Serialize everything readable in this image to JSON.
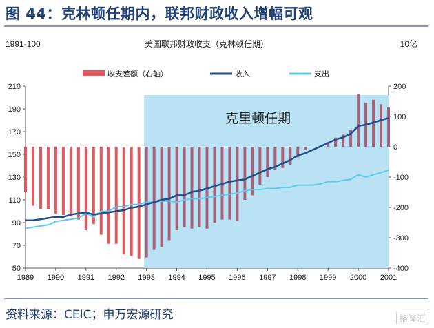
{
  "figure_title": "图 44：克林顿任期内，联邦财政收入增幅可观",
  "source_text": "资料来源：CEIC；申万宏源研究",
  "watermark_text": "格隆汇",
  "chart_data": {
    "type": "bar+line",
    "title": "美国联邦财政收支（克林顿任期）",
    "left_unit": "1991-100",
    "right_unit": "10亿",
    "shaded_label": "克里顿任期",
    "shaded_range": [
      1992.92,
      2001.0
    ],
    "x_range": [
      1989.0,
      2001.0
    ],
    "x_ticks": [
      "1989",
      "1990",
      "1991",
      "1992",
      "1993",
      "1994",
      "1995",
      "1996",
      "1997",
      "1998",
      "1999",
      "2000",
      "2001"
    ],
    "y_left_range": [
      50,
      210
    ],
    "y_left_ticks": [
      "50",
      "70",
      "90",
      "110",
      "130",
      "150",
      "170",
      "190",
      "210"
    ],
    "y_right_range": [
      -400,
      200
    ],
    "y_right_ticks": [
      "-400",
      "-300",
      "-200",
      "-100",
      "0",
      "100",
      "200"
    ],
    "legend": [
      {
        "name": "收支差额（右轴）",
        "color": "#e15a5f",
        "kind": "bar"
      },
      {
        "name": "收入",
        "color": "#1f4e8c",
        "kind": "line"
      },
      {
        "name": "支出",
        "color": "#5ec8ec",
        "kind": "line"
      }
    ],
    "balance": {
      "x": [
        1989.0,
        1989.25,
        1989.5,
        1989.75,
        1990.0,
        1990.25,
        1990.5,
        1990.75,
        1991.0,
        1991.25,
        1991.5,
        1991.75,
        1992.0,
        1992.25,
        1992.5,
        1992.75,
        1993.0,
        1993.25,
        1993.5,
        1993.75,
        1994.0,
        1994.25,
        1994.5,
        1994.75,
        1995.0,
        1995.25,
        1995.5,
        1995.75,
        1996.0,
        1996.25,
        1996.5,
        1996.75,
        1997.0,
        1997.25,
        1997.5,
        1997.75,
        1998.0,
        1998.25,
        1998.5,
        1998.75,
        1999.0,
        1999.25,
        1999.5,
        1999.75,
        2000.0,
        2000.25,
        2000.5,
        2000.75,
        2001.0
      ],
      "values": [
        -150,
        -195,
        -205,
        -205,
        -220,
        -225,
        -230,
        -240,
        -275,
        -255,
        -290,
        -320,
        -320,
        -355,
        -360,
        -370,
        -365,
        -340,
        -330,
        -310,
        -275,
        -265,
        -270,
        -265,
        -270,
        -250,
        -240,
        -240,
        -245,
        -175,
        -160,
        -125,
        -100,
        -75,
        -70,
        -60,
        -35,
        -10,
        0,
        0,
        15,
        30,
        40,
        55,
        175,
        145,
        155,
        140,
        130
      ]
    },
    "revenue": {
      "x": [
        1989.0,
        1989.25,
        1989.5,
        1989.75,
        1990.0,
        1990.25,
        1990.5,
        1990.75,
        1991.0,
        1991.25,
        1991.5,
        1991.75,
        1992.0,
        1992.25,
        1992.5,
        1992.75,
        1993.0,
        1993.25,
        1993.5,
        1993.75,
        1994.0,
        1994.25,
        1994.5,
        1994.75,
        1995.0,
        1995.25,
        1995.5,
        1995.75,
        1996.0,
        1996.25,
        1996.5,
        1996.75,
        1997.0,
        1997.25,
        1997.5,
        1997.75,
        1998.0,
        1998.25,
        1998.5,
        1998.75,
        1999.0,
        1999.25,
        1999.5,
        1999.75,
        2000.0,
        2000.25,
        2000.5,
        2000.75,
        2001.0
      ],
      "values": [
        92,
        92,
        93,
        94,
        95,
        95,
        97,
        98,
        99,
        97,
        98,
        99,
        100,
        101,
        103,
        104,
        106,
        108,
        110,
        111,
        114,
        114,
        117,
        118,
        120,
        122,
        124,
        126,
        127,
        128,
        131,
        134,
        137,
        139,
        142,
        145,
        149,
        151,
        154,
        157,
        160,
        163,
        165,
        168,
        175,
        176,
        178,
        180,
        182
      ]
    },
    "spending": {
      "x": [
        1989.0,
        1989.25,
        1989.5,
        1989.75,
        1990.0,
        1990.25,
        1990.5,
        1990.75,
        1991.0,
        1991.25,
        1991.5,
        1991.75,
        1992.0,
        1992.25,
        1992.5,
        1992.75,
        1993.0,
        1993.25,
        1993.5,
        1993.75,
        1994.0,
        1994.25,
        1994.5,
        1994.75,
        1995.0,
        1995.25,
        1995.5,
        1995.75,
        1996.0,
        1996.25,
        1996.5,
        1996.75,
        1997.0,
        1997.25,
        1997.5,
        1997.75,
        1998.0,
        1998.25,
        1998.5,
        1998.75,
        1999.0,
        1999.25,
        1999.5,
        1999.75,
        2000.0,
        2000.25,
        2000.5,
        2000.75,
        2001.0
      ],
      "values": [
        85,
        86,
        87,
        88,
        91,
        92,
        93,
        94,
        98,
        95,
        100,
        100,
        104,
        104,
        106,
        106,
        108,
        108,
        109,
        109,
        108,
        110,
        111,
        111,
        112,
        113,
        114,
        115,
        116,
        118,
        119,
        119,
        120,
        120,
        121,
        121,
        123,
        123,
        123,
        124,
        126,
        126,
        127,
        128,
        132,
        130,
        132,
        134,
        136
      ]
    }
  }
}
